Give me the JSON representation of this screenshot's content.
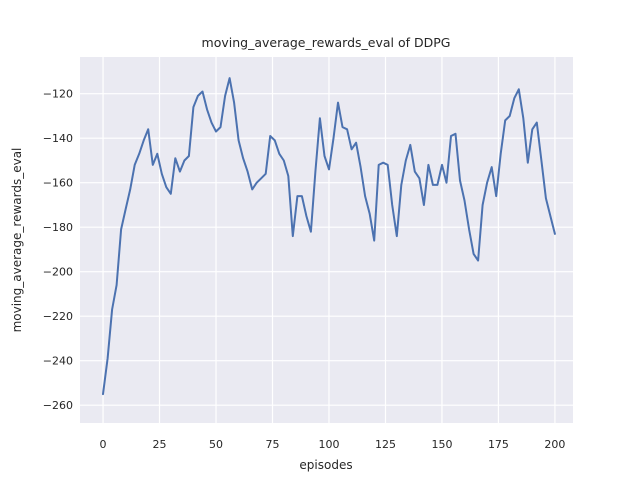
{
  "chart_data": {
    "type": "line",
    "title": "moving_average_rewards_eval of DDPG",
    "xlabel": "episodes",
    "ylabel": "moving_average_rewards_eval",
    "grid": true,
    "legend": "none",
    "xlim": [
      -10.2,
      208
    ],
    "ylim": [
      -268,
      -103.5
    ],
    "x_ticks": {
      "values": [
        0,
        25,
        50,
        75,
        100,
        125,
        150,
        175,
        200
      ],
      "labels": [
        "0",
        "25",
        "50",
        "75",
        "100",
        "125",
        "150",
        "175",
        "200"
      ]
    },
    "y_ticks": {
      "values": [
        -120,
        -140,
        -160,
        -180,
        -200,
        -220,
        -240,
        -260
      ],
      "labels": [
        "−120",
        "−140",
        "−160",
        "−180",
        "−200",
        "−220",
        "−240",
        "−260"
      ]
    },
    "styles": {
      "axes_bg": "#eaeaf2",
      "grid_color": "#ffffff",
      "line_color": "#4c72b0",
      "text_color": "#262626"
    },
    "series": [
      {
        "name": "moving_average_rewards_eval",
        "color": "#4c72b0",
        "x": [
          0,
          2,
          4,
          6,
          8,
          10,
          12,
          14,
          16,
          18,
          20,
          22,
          24,
          26,
          28,
          30,
          32,
          34,
          36,
          38,
          40,
          42,
          44,
          46,
          48,
          50,
          52,
          54,
          56,
          58,
          60,
          62,
          64,
          66,
          68,
          70,
          72,
          74,
          76,
          78,
          80,
          82,
          84,
          86,
          88,
          90,
          92,
          94,
          96,
          98,
          100,
          102,
          104,
          106,
          108,
          110,
          112,
          114,
          116,
          118,
          120,
          122,
          124,
          126,
          128,
          130,
          132,
          134,
          136,
          138,
          140,
          142,
          144,
          146,
          148,
          150,
          152,
          154,
          156,
          158,
          160,
          162,
          164,
          166,
          168,
          170,
          172,
          174,
          176,
          178,
          180,
          182,
          184,
          186,
          188,
          190,
          192,
          194,
          196,
          198,
          200
        ],
        "y": [
          -255,
          -239,
          -217,
          -206,
          -181,
          -172,
          -163,
          -152,
          -147,
          -141,
          -136,
          -152,
          -147,
          -156,
          -162,
          -165,
          -149,
          -155,
          -150,
          -148,
          -126,
          -121,
          -119,
          -127,
          -133,
          -137,
          -135,
          -121,
          -113,
          -124,
          -141,
          -149,
          -155,
          -163,
          -160,
          -158,
          -156,
          -139,
          -141,
          -147,
          -150,
          -157,
          -184,
          -166,
          -166,
          -175,
          -182,
          -155,
          -131,
          -148,
          -154,
          -140,
          -124,
          -135,
          -136,
          -145,
          -142,
          -153,
          -166,
          -174,
          -186,
          -152,
          -151,
          -152,
          -170,
          -184,
          -161,
          -150,
          -143,
          -155,
          -158,
          -170,
          -152,
          -161,
          -161,
          -152,
          -160,
          -139,
          -138,
          -159,
          -168,
          -181,
          -192,
          -195,
          -170,
          -160,
          -153,
          -166,
          -147,
          -132,
          -130,
          -122,
          -118,
          -131,
          -151,
          -136,
          -133,
          -150,
          -167,
          -175,
          -183
        ]
      }
    ]
  }
}
